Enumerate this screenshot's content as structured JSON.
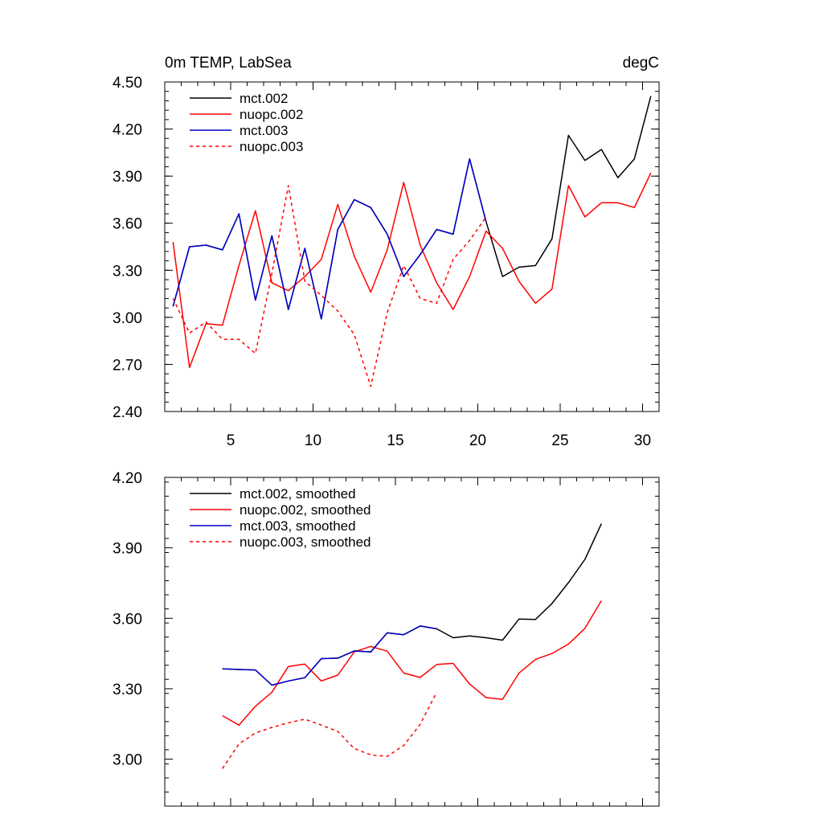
{
  "chart_data": [
    {
      "type": "line",
      "title_left": "0m TEMP, LabSea",
      "title_right": "degC",
      "xlim": [
        1,
        31
      ],
      "ylim": [
        2.4,
        4.5
      ],
      "x_ticks": [
        5,
        10,
        15,
        20,
        25,
        30
      ],
      "x_tick_labels": [
        "5",
        "10",
        "15",
        "20",
        "25",
        "30"
      ],
      "y_ticks": [
        2.4,
        2.7,
        3.0,
        3.3,
        3.6,
        3.9,
        4.2,
        4.5
      ],
      "y_tick_labels": [
        "2.40",
        "2.70",
        "3.00",
        "3.30",
        "3.60",
        "3.90",
        "4.20",
        "4.50"
      ],
      "legend_location": "top-left",
      "series": [
        {
          "name": "mct.002",
          "color": "#000000",
          "dash": "solid",
          "x": [
            1.5,
            2.5,
            3.5,
            4.5,
            5.5,
            6.5,
            7.5,
            8.5,
            9.5,
            10.5,
            11.5,
            12.5,
            13.5,
            14.5,
            15.5,
            16.5,
            17.5,
            18.5,
            19.5,
            20.5,
            21.5,
            22.5,
            23.5,
            24.5,
            25.5,
            26.5,
            27.5,
            28.5,
            29.5,
            30.5
          ],
          "values": [
            3.07,
            3.45,
            3.46,
            3.43,
            3.66,
            3.11,
            3.52,
            3.05,
            3.44,
            2.99,
            3.56,
            3.75,
            3.7,
            3.53,
            3.26,
            3.4,
            3.56,
            3.53,
            4.01,
            3.61,
            3.26,
            3.32,
            3.33,
            3.5,
            4.16,
            4.0,
            4.07,
            3.89,
            4.01,
            4.41
          ]
        },
        {
          "name": "nuopc.002",
          "color": "#ff0000",
          "dash": "solid",
          "x": [
            1.5,
            2.5,
            3.5,
            4.5,
            5.5,
            6.5,
            7.5,
            8.5,
            9.5,
            10.5,
            11.5,
            12.5,
            13.5,
            14.5,
            15.5,
            16.5,
            17.5,
            18.5,
            19.5,
            20.5,
            21.5,
            22.5,
            23.5,
            24.5,
            25.5,
            26.5,
            27.5,
            28.5,
            29.5,
            30.5
          ],
          "values": [
            3.48,
            2.68,
            2.96,
            2.95,
            3.33,
            3.68,
            3.22,
            3.17,
            3.26,
            3.37,
            3.72,
            3.39,
            3.16,
            3.43,
            3.86,
            3.46,
            3.22,
            3.05,
            3.26,
            3.55,
            3.44,
            3.23,
            3.09,
            3.18,
            3.84,
            3.64,
            3.73,
            3.73,
            3.7,
            3.92
          ]
        },
        {
          "name": "mct.003",
          "color": "#0000cc",
          "dash": "solid",
          "x": [
            1.5,
            2.5,
            3.5,
            4.5,
            5.5,
            6.5,
            7.5,
            8.5,
            9.5,
            10.5,
            11.5,
            12.5,
            13.5,
            14.5,
            15.5,
            16.5,
            17.5,
            18.5,
            19.5,
            20.5
          ],
          "values": [
            3.07,
            3.45,
            3.46,
            3.43,
            3.66,
            3.11,
            3.52,
            3.05,
            3.44,
            2.99,
            3.56,
            3.75,
            3.7,
            3.53,
            3.26,
            3.4,
            3.56,
            3.53,
            4.01,
            3.61
          ]
        },
        {
          "name": "nuopc.003",
          "color": "#ff0000",
          "dash": "dashed",
          "x": [
            1.5,
            2.5,
            3.5,
            4.5,
            5.5,
            6.5,
            7.5,
            8.5,
            9.5,
            10.5,
            11.5,
            12.5,
            13.5,
            14.5,
            15.5,
            16.5,
            17.5,
            18.5,
            19.5,
            20.5
          ],
          "values": [
            3.12,
            2.9,
            2.97,
            2.86,
            2.86,
            2.77,
            3.28,
            3.84,
            3.23,
            3.14,
            3.04,
            2.89,
            2.56,
            3.03,
            3.33,
            3.12,
            3.09,
            3.37,
            3.49,
            3.64
          ]
        }
      ]
    },
    {
      "type": "line",
      "xlim": [
        1,
        31
      ],
      "ylim": [
        2.8,
        4.2
      ],
      "x_ticks": [
        5,
        10,
        15,
        20,
        25,
        30
      ],
      "x_tick_labels": [],
      "y_ticks": [
        3.0,
        3.3,
        3.6,
        3.9,
        4.2
      ],
      "y_tick_labels": [
        "3.00",
        "3.30",
        "3.60",
        "3.90",
        "4.20"
      ],
      "legend_location": "top-left",
      "series": [
        {
          "name": "mct.002, smoothed",
          "color": "#000000",
          "dash": "solid",
          "x": [
            4.5,
            5.5,
            6.5,
            7.5,
            8.5,
            9.5,
            10.5,
            11.5,
            12.5,
            13.5,
            14.5,
            15.5,
            16.5,
            17.5,
            18.5,
            19.5,
            20.5,
            21.5,
            22.5,
            23.5,
            24.5,
            25.5,
            26.5,
            27.5
          ],
          "values": [
            3.385,
            3.382,
            3.38,
            3.315,
            3.333,
            3.347,
            3.428,
            3.43,
            3.461,
            3.457,
            3.538,
            3.53,
            3.567,
            3.555,
            3.517,
            3.525,
            3.517,
            3.507,
            3.597,
            3.595,
            3.663,
            3.752,
            3.851,
            4.003
          ]
        },
        {
          "name": "nuopc.002, smoothed",
          "color": "#ff0000",
          "dash": "solid",
          "x": [
            4.5,
            5.5,
            6.5,
            7.5,
            8.5,
            9.5,
            10.5,
            11.5,
            12.5,
            13.5,
            14.5,
            15.5,
            16.5,
            17.5,
            18.5,
            19.5,
            20.5,
            21.5,
            22.5,
            23.5,
            24.5,
            25.5,
            26.5,
            27.5
          ],
          "values": [
            3.185,
            3.145,
            3.225,
            3.285,
            3.395,
            3.405,
            3.333,
            3.358,
            3.457,
            3.48,
            3.46,
            3.367,
            3.348,
            3.403,
            3.408,
            3.32,
            3.262,
            3.255,
            3.367,
            3.425,
            3.45,
            3.49,
            3.557,
            3.675
          ]
        },
        {
          "name": "mct.003, smoothed",
          "color": "#0000cc",
          "dash": "solid",
          "x": [
            4.5,
            5.5,
            6.5,
            7.5,
            8.5,
            9.5,
            10.5,
            11.5,
            12.5,
            13.5,
            14.5,
            15.5,
            16.5,
            17.5
          ],
          "values": [
            3.385,
            3.382,
            3.38,
            3.315,
            3.333,
            3.347,
            3.428,
            3.43,
            3.461,
            3.457,
            3.538,
            3.53,
            3.567,
            3.555
          ]
        },
        {
          "name": "nuopc.003, smoothed",
          "color": "#ff0000",
          "dash": "dashed",
          "x": [
            4.5,
            5.5,
            6.5,
            7.5,
            8.5,
            9.5,
            10.5,
            11.5,
            12.5,
            13.5,
            14.5,
            15.5,
            16.5,
            17.5
          ],
          "values": [
            2.96,
            3.065,
            3.112,
            3.135,
            3.155,
            3.17,
            3.145,
            3.118,
            3.045,
            3.018,
            3.012,
            3.058,
            3.148,
            3.285
          ]
        }
      ]
    }
  ]
}
